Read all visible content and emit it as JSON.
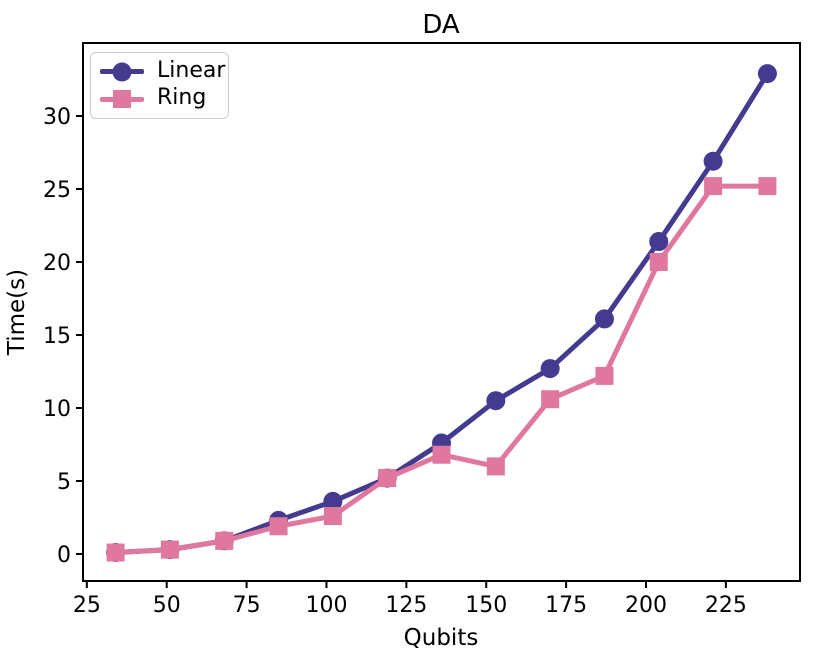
{
  "figure": {
    "title": "DA",
    "xlabel": "Qubits",
    "ylabel": "Time(s)"
  },
  "chart_data": {
    "type": "line",
    "title": "DA",
    "xlabel": "Qubits",
    "ylabel": "Time(s)",
    "x": [
      34,
      51,
      68,
      85,
      102,
      119,
      136,
      153,
      170,
      187,
      204,
      221,
      238
    ],
    "series": [
      {
        "name": "Linear",
        "marker": "circle",
        "color": "#443a8f",
        "values": [
          0.1,
          0.3,
          0.9,
          2.3,
          3.6,
          5.2,
          7.6,
          10.5,
          12.7,
          16.1,
          21.4,
          26.9,
          32.9
        ]
      },
      {
        "name": "Ring",
        "marker": "square",
        "color": "#e0779e",
        "values": [
          0.1,
          0.3,
          0.9,
          1.9,
          2.6,
          5.2,
          6.8,
          6.0,
          10.6,
          12.2,
          20.0,
          25.2,
          25.2
        ]
      }
    ],
    "xticks": [
      25,
      50,
      75,
      100,
      125,
      150,
      175,
      200,
      225
    ],
    "yticks": [
      0,
      5,
      10,
      15,
      20,
      25,
      30
    ],
    "xlim": [
      23.8,
      248.2
    ],
    "ylim": [
      -1.85,
      35.0
    ],
    "grid": false,
    "legend_position": "upper left",
    "spine_color": "#000000",
    "tick_color": "#000000"
  }
}
